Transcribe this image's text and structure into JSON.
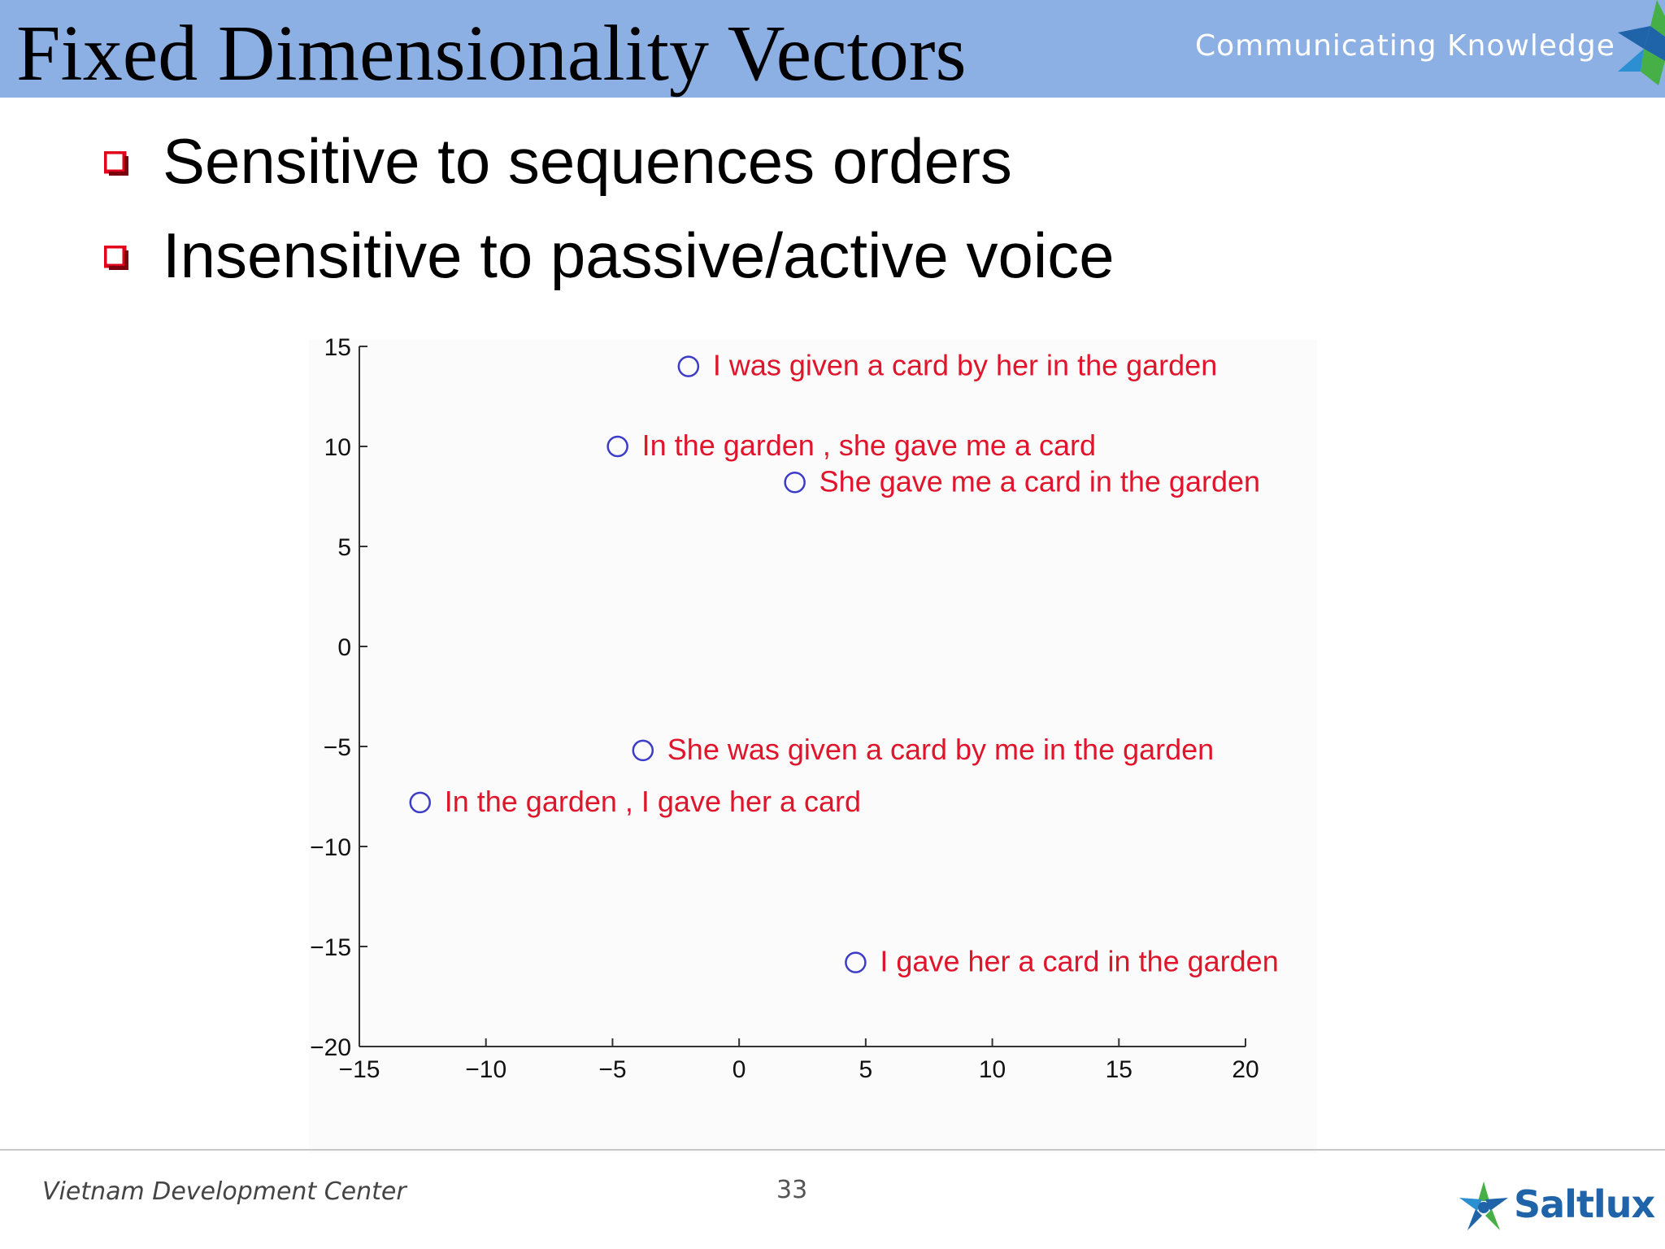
{
  "header": {
    "title": "Fixed Dimensionality Vectors",
    "tagline": "Communicating Knowledge"
  },
  "bullets": [
    "Sensitive to sequences orders",
    "Insensitive to passive/active voice"
  ],
  "colors": {
    "header_bg": "#8db0e4",
    "bullet": "#e3001b",
    "label": "#e0142a",
    "marker": "#3c3cc8",
    "brand": "#1f63a8"
  },
  "chart_data": {
    "type": "scatter",
    "xlim": [
      -15,
      20
    ],
    "ylim": [
      -20,
      15
    ],
    "xticks": [
      -15,
      -10,
      -5,
      0,
      5,
      10,
      15,
      20
    ],
    "yticks": [
      -20,
      -15,
      -10,
      -5,
      0,
      5,
      10,
      15
    ],
    "xtick_labels": [
      "−15",
      "−10",
      "−5",
      "0",
      "5",
      "10",
      "15",
      "20"
    ],
    "ytick_labels": [
      "−20",
      "−15",
      "−10",
      "−5",
      "0",
      "5",
      "10",
      "15"
    ],
    "grid": false,
    "points": [
      {
        "x": -2,
        "y": 14.0,
        "label": "I was given a card by her in the garden"
      },
      {
        "x": -4.8,
        "y": 10.0,
        "label": "In the garden , she gave me a card"
      },
      {
        "x": 2.2,
        "y": 8.2,
        "label": "She gave me a card in the garden"
      },
      {
        "x": -3.8,
        "y": -5.2,
        "label": "She was given a card by me in the garden"
      },
      {
        "x": -12.6,
        "y": -7.8,
        "label": "In the garden , I gave her a card"
      },
      {
        "x": 4.6,
        "y": -15.8,
        "label": "I gave her a card in the garden"
      }
    ]
  },
  "footer": {
    "left": "Vietnam Development Center",
    "page": "33",
    "brand": "Saltlux"
  }
}
